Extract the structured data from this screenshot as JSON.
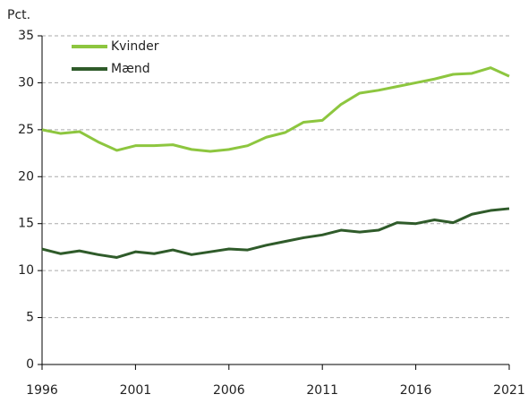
{
  "chart_data": {
    "type": "line",
    "y_label": "Pct.",
    "x": [
      1996,
      1997,
      1998,
      1999,
      2000,
      2001,
      2002,
      2003,
      2004,
      2005,
      2006,
      2007,
      2008,
      2009,
      2010,
      2011,
      2012,
      2013,
      2014,
      2015,
      2016,
      2017,
      2018,
      2019,
      2020,
      2021
    ],
    "series": [
      {
        "name": "Kvinder",
        "color": "#8dc63f",
        "values": [
          25.0,
          24.6,
          24.8,
          23.7,
          22.8,
          23.3,
          23.3,
          23.4,
          22.9,
          22.7,
          22.9,
          23.3,
          24.2,
          24.7,
          25.8,
          26.0,
          27.7,
          28.9,
          29.2,
          29.6,
          30.0,
          30.4,
          30.9,
          31.0,
          31.6,
          30.7
        ]
      },
      {
        "name": "Mænd",
        "color": "#2f5b2a",
        "values": [
          12.3,
          11.8,
          12.1,
          11.7,
          11.4,
          12.0,
          11.8,
          12.2,
          11.7,
          12.0,
          12.3,
          12.2,
          12.7,
          13.1,
          13.5,
          13.8,
          14.3,
          14.1,
          14.3,
          15.1,
          15.0,
          15.4,
          15.1,
          16.0,
          16.4,
          16.6
        ]
      }
    ],
    "xlim": [
      1996,
      2021
    ],
    "xticks": [
      1996,
      2001,
      2006,
      2011,
      2016,
      2021
    ],
    "ylim": [
      0,
      35
    ],
    "yticks": [
      0,
      5,
      10,
      15,
      20,
      25,
      30,
      35
    ],
    "grid": true,
    "legend": "top-left"
  }
}
